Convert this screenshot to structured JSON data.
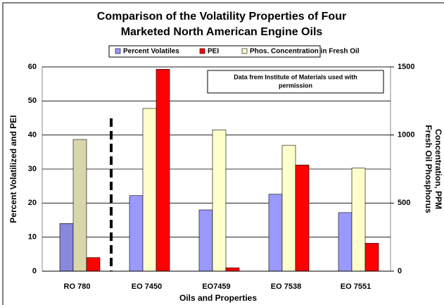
{
  "chart_data": {
    "type": "bar",
    "title": [
      "Comparison of the Volatility Properties of Four",
      "Marketed North American Engine Oils"
    ],
    "annotation": [
      "Data frem Institute of Materials used with",
      "permission"
    ],
    "xlabel": "Oils and Properties",
    "ylabel": "Percent Volatilized and PEI",
    "y2label": [
      "Fresh Oil Phosphorus",
      "Concentration, PPM"
    ],
    "categories": [
      "RO 780",
      "EO 7450",
      "EO7459",
      "EO 7538",
      "EO 7551"
    ],
    "series": [
      {
        "name": "Percent Volatiles",
        "color": "#9999ff",
        "colors": [
          "#8888dd",
          "#9999ff",
          "#9999ff",
          "#9999ff",
          "#9999ff"
        ],
        "values": [
          14,
          22.2,
          18,
          22.6,
          17.2
        ]
      },
      {
        "name": "Phos. Concentration in Fresh Oil",
        "color": "#ffffcc",
        "colors": [
          "#d9d6ab",
          "#ffffcc",
          "#ffffcc",
          "#ffffcc",
          "#ffffcc"
        ],
        "values": [
          967,
          1195,
          1038,
          925,
          757
        ],
        "axis": "y2"
      },
      {
        "name": "PEI",
        "color": "#ff0000",
        "colors": [
          "#ff0000",
          "#ff0000",
          "#ff0000",
          "#ff0000",
          "#ff0000"
        ],
        "values": [
          4,
          59.3,
          1,
          31.2,
          8.2
        ]
      }
    ],
    "legend_order": [
      0,
      2,
      1
    ],
    "ylim": [
      0,
      60
    ],
    "yticks": [
      0,
      10,
      20,
      30,
      40,
      50,
      60
    ],
    "y2lim": [
      0,
      1500
    ],
    "y2ticks": [
      0,
      500,
      1000,
      1500
    ],
    "grid": true,
    "legend": "top"
  }
}
